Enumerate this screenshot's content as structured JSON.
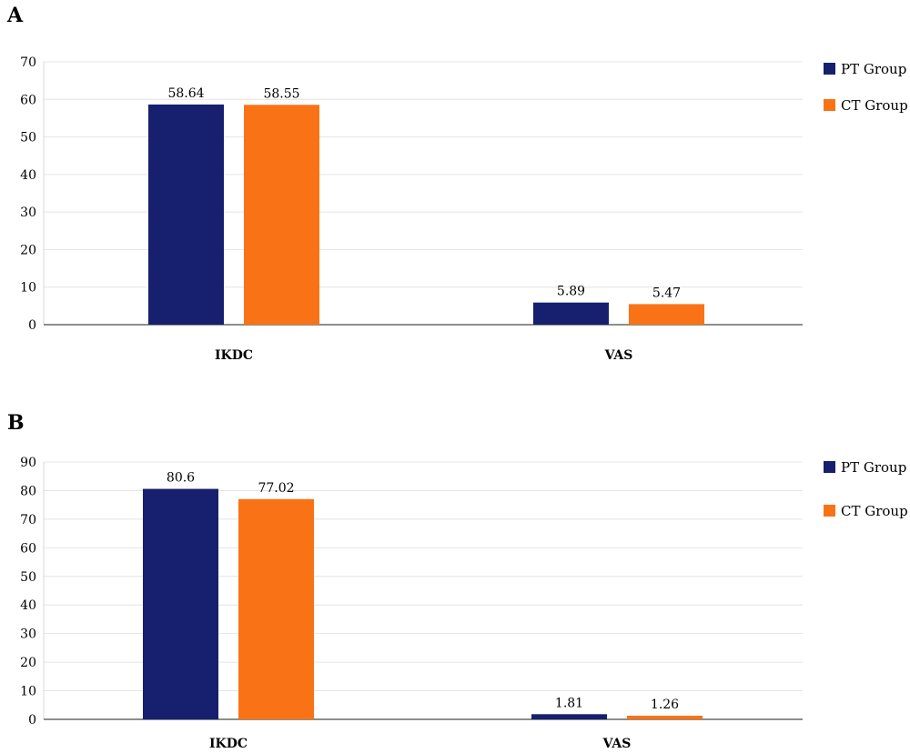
{
  "colors": {
    "pt": "#16206e",
    "ct": "#f97316"
  },
  "chart_data": [
    {
      "type": "bar",
      "panel_label": "A",
      "categories": [
        "IKDC",
        "VAS"
      ],
      "series": [
        {
          "name": "PT Group",
          "values": [
            58.64,
            5.89
          ],
          "labels": [
            "58.64",
            "5.89"
          ]
        },
        {
          "name": "CT Group",
          "values": [
            58.55,
            5.47
          ],
          "labels": [
            "58.55",
            "5.47"
          ]
        }
      ],
      "yticks": [
        "0",
        "10",
        "20",
        "30",
        "40",
        "50",
        "60",
        "70"
      ],
      "ylim": [
        0,
        70
      ],
      "grid": true,
      "legend_position": "right"
    },
    {
      "type": "bar",
      "panel_label": "B",
      "categories": [
        "IKDC",
        "VAS"
      ],
      "series": [
        {
          "name": "PT Group",
          "values": [
            80.6,
            1.81
          ],
          "labels": [
            "80.6",
            "1.81"
          ]
        },
        {
          "name": "CT Group",
          "values": [
            77.02,
            1.26
          ],
          "labels": [
            "77.02",
            "1.26"
          ]
        }
      ],
      "yticks": [
        "0",
        "10",
        "20",
        "30",
        "40",
        "50",
        "60",
        "70",
        "80",
        "90"
      ],
      "ylim": [
        0,
        90
      ],
      "grid": true,
      "legend_position": "right"
    }
  ]
}
